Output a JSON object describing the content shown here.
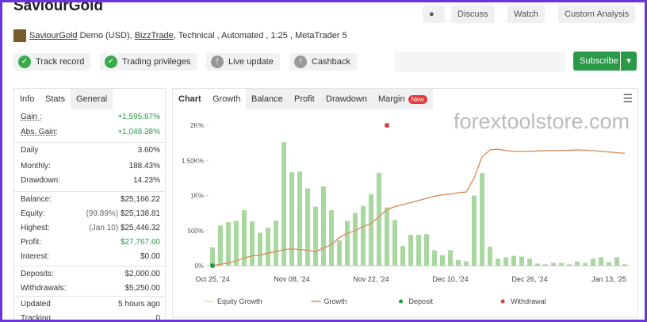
{
  "header": {
    "title": "SaviourGold",
    "buttons": [
      "Discuss",
      "Watch",
      "Custom Analysis"
    ],
    "account": "SaviourGold",
    "details_prefix": "Demo (USD),",
    "broker": "BizzTrade",
    "details_suffix": ", Technical , Automated , 1:25 , MetaTrader 5"
  },
  "badges": [
    {
      "label": "Track record",
      "ok": true
    },
    {
      "label": "Trading privileges",
      "ok": true
    },
    {
      "label": "Live update",
      "ok": false
    },
    {
      "label": "Cashback",
      "ok": false
    }
  ],
  "subscribe": "Subscribe",
  "stats": {
    "tabs": [
      "Info",
      "Stats",
      "General"
    ],
    "rows": [
      {
        "label": "Gain :",
        "value": "+1,595.87%",
        "highlight": true
      },
      {
        "label": "Abs. Gain:",
        "value": "+1,048.38%",
        "highlight": true
      },
      {
        "label": "Daily",
        "value": "3.60%"
      },
      {
        "label": "Monthly:",
        "value": "188.43%"
      },
      {
        "label": "Drawdown:",
        "value": "14.23%"
      },
      {
        "label": "Balance:",
        "value": "$25,166.22"
      },
      {
        "label": "Equity:",
        "note": "(99.89%)",
        "value": "$25,138.81"
      },
      {
        "label": "Highest:",
        "note": "(Jan 10)",
        "value": "$25,446.32"
      },
      {
        "label": "Profit:",
        "value": "$27,767.60",
        "highlight": true
      },
      {
        "label": "Interest:",
        "value": "$0.00"
      },
      {
        "label": "Deposits:",
        "value": "$2,000.00"
      },
      {
        "label": "Withdrawals:",
        "value": "$5,250.00"
      },
      {
        "label": "Updated",
        "value": "5 hours ago"
      },
      {
        "label": "Tracking",
        "value": "0"
      }
    ]
  },
  "chart_tabs": [
    "Chart",
    "Growth",
    "Balance",
    "Profit",
    "Drawdown",
    "Margin"
  ],
  "new_badge": "New",
  "watermark": "forextoolstore.com",
  "chart_data": {
    "type": "bar-line",
    "categories": [
      "Oct 25, '24",
      null,
      null,
      null,
      null,
      null,
      null,
      null,
      null,
      null,
      "Nov 08, '24",
      null,
      null,
      null,
      null,
      null,
      null,
      null,
      null,
      null,
      "Nov 22, '24",
      null,
      null,
      null,
      null,
      null,
      null,
      null,
      null,
      null,
      "Dec 10, '24",
      null,
      null,
      null,
      null,
      null,
      null,
      null,
      null,
      null,
      "Dec 26, '24",
      null,
      null,
      null,
      null,
      null,
      null,
      null,
      null,
      null,
      "Jan 13, '25",
      null,
      null
    ],
    "bars": {
      "color": "#a9d7a0",
      "values": [
        260,
        570,
        620,
        640,
        790,
        630,
        470,
        540,
        640,
        1760,
        1330,
        1340,
        1100,
        840,
        1130,
        790,
        360,
        640,
        750,
        850,
        1020,
        1320,
        830,
        650,
        280,
        440,
        440,
        450,
        220,
        150,
        220,
        80,
        60,
        1000,
        1320,
        270,
        100,
        120,
        140,
        130,
        100,
        30,
        20,
        40,
        40,
        20,
        60,
        40,
        100,
        120,
        50,
        120,
        20
      ]
    },
    "series": [
      {
        "name": "Equity Growth",
        "color": "#e6e6a8",
        "values": [
          0,
          20,
          40,
          70,
          110,
          140,
          150,
          180,
          200,
          230,
          240,
          230,
          220,
          200,
          250,
          300,
          400,
          460,
          500,
          560,
          600,
          700,
          800,
          840,
          870,
          900,
          930,
          960,
          990,
          1010,
          1020,
          1040,
          1050,
          1250,
          1550,
          1650,
          1660,
          1640,
          1630,
          1630,
          1630,
          1635,
          1640,
          1640,
          1640,
          1645,
          1650,
          1645,
          1640,
          1630,
          1620,
          1610,
          1600
        ]
      },
      {
        "name": "Growth",
        "color": "#d9895a",
        "values": [
          0,
          20,
          40,
          70,
          110,
          140,
          150,
          180,
          200,
          230,
          240,
          230,
          220,
          200,
          250,
          300,
          400,
          460,
          500,
          560,
          600,
          700,
          800,
          840,
          870,
          900,
          930,
          960,
          990,
          1010,
          1020,
          1040,
          1050,
          1250,
          1550,
          1650,
          1660,
          1640,
          1630,
          1630,
          1630,
          1635,
          1640,
          1640,
          1640,
          1645,
          1650,
          1645,
          1640,
          1630,
          1620,
          1610,
          1600
        ]
      }
    ],
    "markers": [
      {
        "name": "Deposit",
        "color": "#1f9e3a",
        "x": 0,
        "value": 0
      },
      {
        "name": "Withdrawal",
        "color": "#e23b3b",
        "x": 22,
        "value": 2000
      }
    ],
    "ylim": [
      0,
      2000
    ],
    "yticks": [
      {
        "value": 0,
        "label": "0%"
      },
      {
        "value": 500,
        "label": "500%"
      },
      {
        "value": 1000,
        "label": "1K%"
      },
      {
        "value": 1500,
        "label": "1.50K%"
      },
      {
        "value": 2000,
        "label": "2K%"
      }
    ],
    "grid": false
  }
}
